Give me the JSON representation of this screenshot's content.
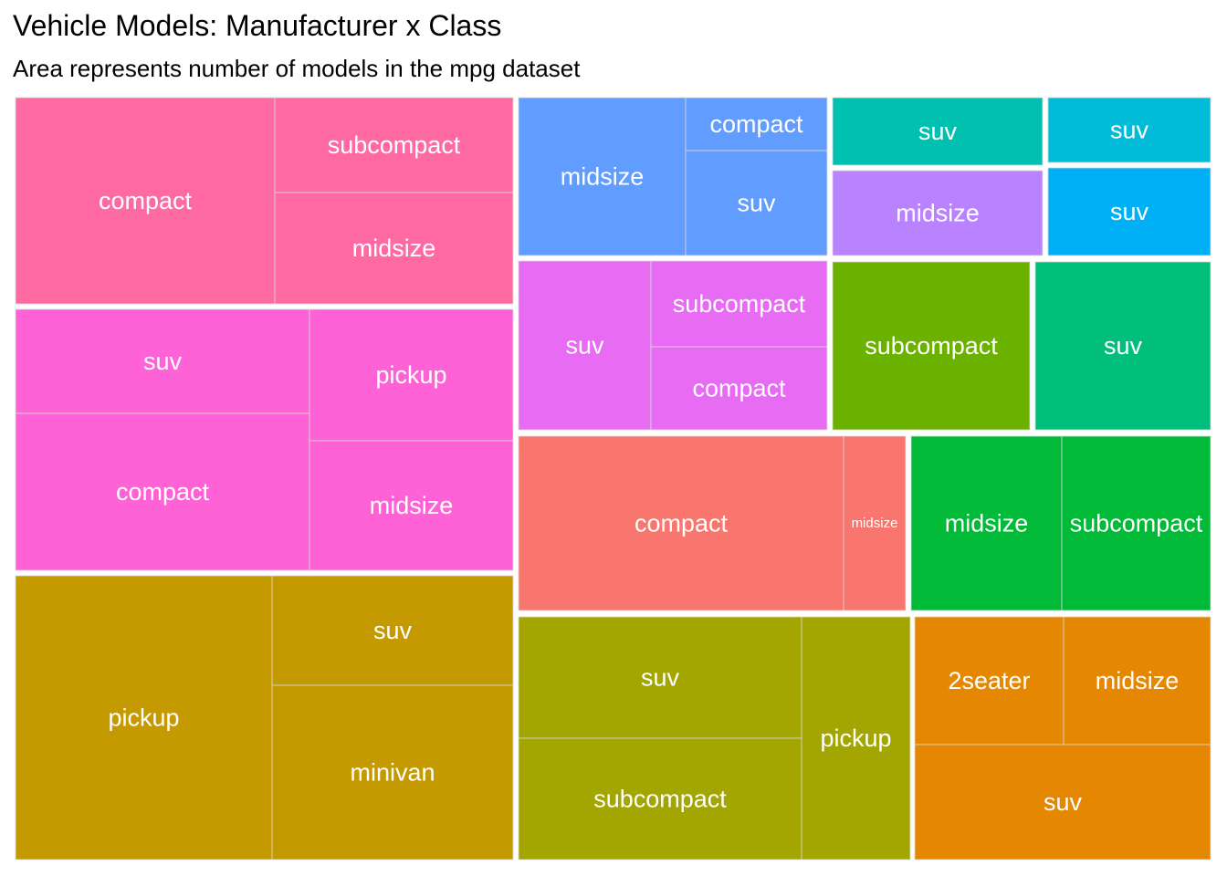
{
  "chart_data": {
    "type": "treemap",
    "title": "Vehicle Models: Manufacturer x Class",
    "subtitle": "Area represents number of models in the mpg dataset",
    "groups": [
      {
        "color": "#FF6AA3",
        "cells": [
          {
            "label": "compact",
            "value": 11
          },
          {
            "label": "subcompact",
            "value": 4
          },
          {
            "label": "midsize",
            "value": 4.5
          }
        ]
      },
      {
        "color": "#FF62D6",
        "cells": [
          {
            "label": "suv",
            "value": 8.4
          },
          {
            "label": "compact",
            "value": 12.6
          },
          {
            "label": "pickup",
            "value": 6.1
          },
          {
            "label": "midsize",
            "value": 7.6
          }
        ]
      },
      {
        "color": "#C59900",
        "cells": [
          {
            "label": "pickup",
            "value": 19.6
          },
          {
            "label": "suv",
            "value": 7.6
          },
          {
            "label": "minivan",
            "value": 11
          }
        ]
      },
      {
        "color": "#619CFF",
        "cells": [
          {
            "label": "midsize",
            "value": 7.4
          },
          {
            "label": "compact",
            "value": 1.9
          },
          {
            "label": "suv",
            "value": 4.3
          }
        ]
      },
      {
        "color": "#E76BF3",
        "cells": [
          {
            "label": "suv",
            "value": 6.2
          },
          {
            "label": "subcompact",
            "value": 4.2
          },
          {
            "label": "compact",
            "value": 4.4
          }
        ]
      },
      {
        "color": "#00C0AF",
        "cells": [
          {
            "label": "suv",
            "value": 3.2
          }
        ]
      },
      {
        "color": "#B983FF",
        "cells": [
          {
            "label": "midsize",
            "value": 4.0
          }
        ]
      },
      {
        "color": "#00BCD8",
        "cells": [
          {
            "label": "suv",
            "value": 2.6
          }
        ]
      },
      {
        "color": "#00B0F6",
        "cells": [
          {
            "label": "suv",
            "value": 3.4
          }
        ]
      },
      {
        "color": "#6BB100",
        "cells": [
          {
            "label": "subcompact",
            "value": 7.4
          }
        ]
      },
      {
        "color": "#00BF7D",
        "cells": [
          {
            "label": "suv",
            "value": 6.8
          }
        ]
      },
      {
        "color": "#F8766D",
        "cells": [
          {
            "label": "compact",
            "value": 12.6
          },
          {
            "label": "midsize",
            "value": 2.5
          }
        ]
      },
      {
        "color": "#00BA38",
        "cells": [
          {
            "label": "midsize",
            "value": 5.8
          },
          {
            "label": "subcompact",
            "value": 5.8
          }
        ]
      },
      {
        "color": "#A3A500",
        "cells": [
          {
            "label": "suv",
            "value": 7.7
          },
          {
            "label": "subcompact",
            "value": 7.7
          },
          {
            "label": "pickup",
            "value": 6.3
          }
        ]
      },
      {
        "color": "#E58700",
        "cells": [
          {
            "label": "2seater",
            "value": 4.3
          },
          {
            "label": "midsize",
            "value": 4.3
          },
          {
            "label": "suv",
            "value": 7.4
          }
        ]
      }
    ]
  }
}
